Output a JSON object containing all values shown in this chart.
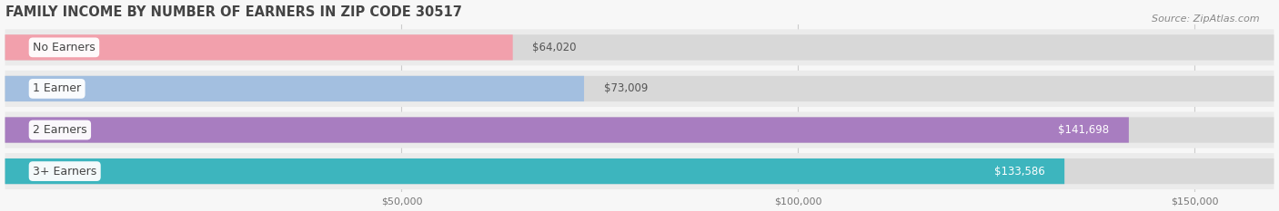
{
  "title": "FAMILY INCOME BY NUMBER OF EARNERS IN ZIP CODE 30517",
  "source": "Source: ZipAtlas.com",
  "categories": [
    "No Earners",
    "1 Earner",
    "2 Earners",
    "3+ Earners"
  ],
  "values": [
    64020,
    73009,
    141698,
    133586
  ],
  "bar_colors": [
    "#f2a0ac",
    "#a3bfe0",
    "#a87dc0",
    "#3db5be"
  ],
  "value_labels": [
    "$64,020",
    "$73,009",
    "$141,698",
    "$133,586"
  ],
  "xlim_min": 0,
  "xlim_max": 160000,
  "x_ticks": [
    50000,
    100000,
    150000
  ],
  "x_tick_labels": [
    "$50,000",
    "$100,000",
    "$150,000"
  ],
  "title_fontsize": 10.5,
  "label_fontsize": 9,
  "value_fontsize": 8.5,
  "source_fontsize": 8,
  "bg_color": "#f7f7f7",
  "row_bg_color": "#ebebeb",
  "bar_bg_color": "#d8d8d8"
}
